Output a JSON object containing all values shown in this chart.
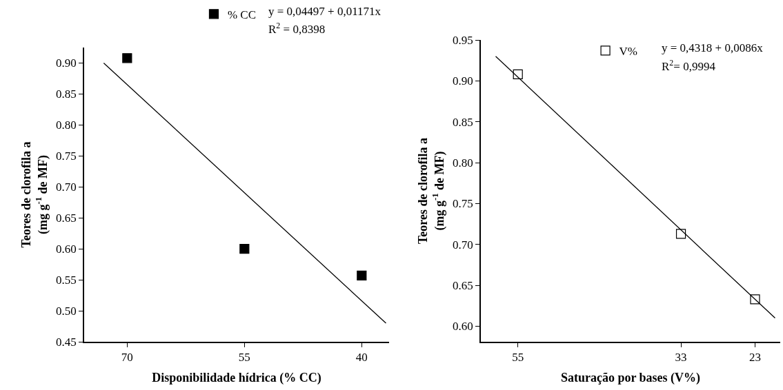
{
  "chart_data": [
    {
      "type": "scatter",
      "xlabel": "Disponibilidade hídrica (% CC)",
      "ylabel": "Teores de clorofila a\n(mg g$^{-1}$ de MF)",
      "xlim": [
        75.5,
        36.5
      ],
      "xticks": [
        70,
        55,
        40
      ],
      "ylim": [
        0.45,
        0.925
      ],
      "yticks": [
        0.45,
        {
          "value": 0.5,
          "label": "0.50"
        },
        0.55,
        {
          "value": 0.6,
          "label": "0.60"
        },
        0.65,
        {
          "value": 0.7,
          "label": "0.70"
        },
        0.75,
        {
          "value": 0.8,
          "label": "0.80"
        },
        0.85,
        {
          "value": 0.9,
          "label": "0.90"
        }
      ],
      "legend": "top right",
      "grid": false,
      "series": [
        {
          "name": "% CC",
          "color": "#000000",
          "marker": "square",
          "x": [
            70,
            55,
            40
          ],
          "values": [
            0.908,
            0.6,
            0.557
          ]
        },
        {
          "type": "line",
          "color": "#000000",
          "marker": "none",
          "x": [
            73,
            36.9
          ],
          "values": [
            0.9,
            0.48
          ]
        }
      ],
      "annotations": [
        "y = 0,04497 + 0,01171x",
        "R$^{2}$ = 0,8398"
      ]
    },
    {
      "type": "scatter",
      "xlabel": "Saturação por bases (V%)",
      "ylabel": "Teores de clorofila a\n(mg g$^{-1}$ de MF)",
      "xlim": [
        60,
        19.6
      ],
      "xticks": [
        55,
        33,
        23
      ],
      "ylim": [
        0.581,
        0.95
      ],
      "yticks": [
        {
          "value": 0.6,
          "label": "0.60"
        },
        0.65,
        {
          "value": 0.7,
          "label": "0.70"
        },
        0.75,
        {
          "value": 0.8,
          "label": "0.80"
        },
        0.85,
        {
          "value": 0.9,
          "label": "0.90"
        },
        0.95
      ],
      "legend": "top right",
      "grid": false,
      "series": [
        {
          "name": "V%",
          "color": "#000000",
          "marker": "square-open",
          "x": [
            55,
            33,
            23
          ],
          "values": [
            0.908,
            0.713,
            0.633
          ]
        },
        {
          "type": "line",
          "color": "#000000",
          "marker": "none",
          "x": [
            58,
            20.3
          ],
          "values": [
            0.93,
            0.61
          ]
        }
      ],
      "annotations": [
        "y = 0,4318 + 0,0086x",
        "R$^{2}$= 0,9994"
      ]
    }
  ]
}
